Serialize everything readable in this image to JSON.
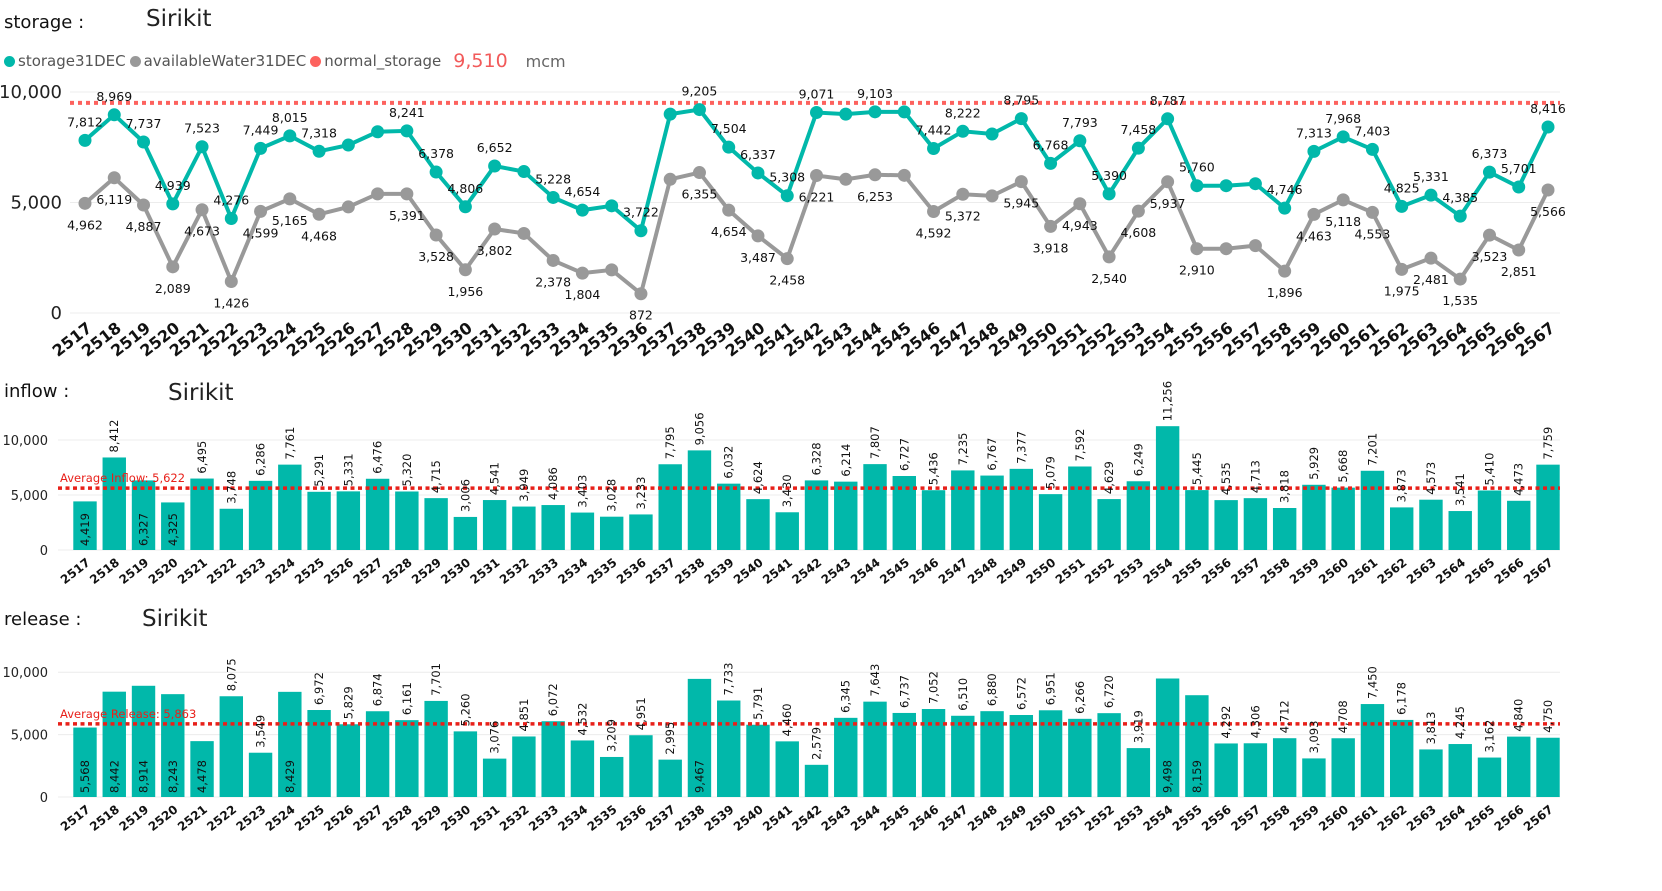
{
  "colors": {
    "teal": "#01b8aa",
    "gray": "#999999",
    "red": "#fd625e",
    "avgline": "#e8201a"
  },
  "storage": {
    "section_label": "storage :",
    "title": "Sirikit",
    "legend": [
      {
        "name": "storage31DEC",
        "color": "#01b8aa"
      },
      {
        "name": "availableWater31DEC",
        "color": "#999999"
      },
      {
        "name": "normal_storage",
        "color": "#fd625e"
      }
    ],
    "normal_storage_value": "9,510",
    "unit": "mcm"
  },
  "inflow": {
    "section_label": "inflow :",
    "title": "Sirikit"
  },
  "release": {
    "section_label": "release :",
    "title": "Sirikit"
  },
  "chart_data": [
    {
      "type": "line",
      "title": "Sirikit",
      "x": [
        "2517",
        "2518",
        "2519",
        "2520",
        "2521",
        "2522",
        "2523",
        "2524",
        "2525",
        "2526",
        "2527",
        "2528",
        "2529",
        "2530",
        "2531",
        "2532",
        "2533",
        "2534",
        "2535",
        "2536",
        "2537",
        "2538",
        "2539",
        "2540",
        "2541",
        "2542",
        "2543",
        "2544",
        "2545",
        "2546",
        "2547",
        "2548",
        "2549",
        "2550",
        "2551",
        "2552",
        "2553",
        "2554",
        "2555",
        "2556",
        "2557",
        "2558",
        "2559",
        "2560",
        "2561",
        "2562",
        "2563",
        "2564",
        "2565",
        "2566",
        "2567"
      ],
      "ylim": [
        0,
        10000
      ],
      "yticks": [
        0,
        5000,
        10000
      ],
      "ytick_labels": [
        "0",
        "5,000",
        "10,000"
      ],
      "reference_line": {
        "name": "normal_storage",
        "value": 9510
      },
      "series": [
        {
          "name": "storage31DEC",
          "color": "#01b8aa",
          "values": [
            7812,
            8969,
            7737,
            4939,
            7523,
            4276,
            7449,
            8015,
            7318,
            7600,
            8200,
            8241,
            6378,
            4806,
            6652,
            6400,
            5228,
            4654,
            4850,
            3722,
            9000,
            9205,
            7504,
            6337,
            5308,
            9071,
            9000,
            9103,
            9100,
            7442,
            8222,
            8100,
            8795,
            6768,
            7793,
            5390,
            7458,
            8787,
            5760,
            5760,
            5850,
            4746,
            7313,
            7968,
            7403,
            4825,
            5331,
            4385,
            6373,
            5701,
            8416
          ],
          "labels": [
            "7,812",
            "8,969",
            "7,737",
            "4,939",
            "7,523",
            "4,276",
            "7,449",
            "8,015",
            "7,318",
            "",
            "",
            "8,241",
            "6,378",
            "4,806",
            "6,652",
            "",
            "5,228",
            "4,654",
            "",
            "3,722",
            "",
            "9,205",
            "7,504",
            "6,337",
            "5,308",
            "9,071",
            "",
            "9,103",
            "",
            "7,442",
            "8,222",
            "",
            "8,795",
            "6,768",
            "7,793",
            "5,390",
            "7,458",
            "8,787",
            "5,760",
            "",
            "",
            "4,746",
            "7,313",
            "7,968",
            "7,403",
            "4,825",
            "5,331",
            "4,385",
            "6,373",
            "5,701",
            "8,416"
          ]
        },
        {
          "name": "availableWater31DEC",
          "color": "#999999",
          "values": [
            4962,
            6119,
            4887,
            2089,
            4673,
            1426,
            4599,
            5165,
            4468,
            4800,
            5391,
            5391,
            3528,
            1956,
            3802,
            3600,
            2378,
            1804,
            1950,
            872,
            6050,
            6355,
            4654,
            3487,
            2458,
            6221,
            6050,
            6253,
            6230,
            4592,
            5372,
            5300,
            5945,
            3918,
            4943,
            2540,
            4608,
            5937,
            2910,
            2910,
            3050,
            1896,
            4463,
            5118,
            4553,
            1975,
            2481,
            1535,
            3523,
            2851,
            5566
          ],
          "labels": [
            "4,962",
            "6,119",
            "4,887",
            "2,089",
            "4,673",
            "1,426",
            "4,599",
            "5,165",
            "4,468",
            "",
            "",
            "5,391",
            "3,528",
            "1,956",
            "3,802",
            "",
            "2,378",
            "1,804",
            "",
            "872",
            "",
            "6,355",
            "4,654",
            "3,487",
            "2,458",
            "6,221",
            "",
            "6,253",
            "",
            "4,592",
            "5,372",
            "",
            "5,945",
            "3,918",
            "4,943",
            "2,540",
            "4,608",
            "5,937",
            "2,910",
            "",
            "",
            "1,896",
            "4,463",
            "5,118",
            "4,553",
            "1,975",
            "2,481",
            "1,535",
            "3,523",
            "2,851",
            "5,566"
          ]
        }
      ]
    },
    {
      "type": "bar",
      "title": "Sirikit",
      "categories": [
        "2517",
        "2518",
        "2519",
        "2520",
        "2521",
        "2522",
        "2523",
        "2524",
        "2525",
        "2526",
        "2527",
        "2528",
        "2529",
        "2530",
        "2531",
        "2532",
        "2533",
        "2534",
        "2535",
        "2536",
        "2537",
        "2538",
        "2539",
        "2540",
        "2541",
        "2542",
        "2543",
        "2544",
        "2545",
        "2546",
        "2547",
        "2548",
        "2549",
        "2550",
        "2551",
        "2552",
        "2553",
        "2554",
        "2555",
        "2556",
        "2557",
        "2558",
        "2559",
        "2560",
        "2561",
        "2562",
        "2563",
        "2564",
        "2565",
        "2566",
        "2567"
      ],
      "values": [
        4419,
        8412,
        6327,
        4325,
        6495,
        3748,
        6286,
        7761,
        5291,
        5331,
        6476,
        5320,
        4715,
        3006,
        4541,
        3949,
        4086,
        3403,
        3028,
        3233,
        7795,
        9056,
        6032,
        4624,
        3430,
        6328,
        6214,
        7807,
        6727,
        5436,
        7235,
        6767,
        7377,
        5079,
        7592,
        4629,
        6249,
        11256,
        5445,
        4535,
        4713,
        3818,
        5929,
        5668,
        7201,
        3873,
        4573,
        3541,
        5410,
        4473,
        7759
      ],
      "labels": [
        "4,419",
        "8,412",
        "6,327",
        "4,325",
        "6,495",
        "3,748",
        "6,286",
        "7,761",
        "5,291",
        "5,331",
        "6,476",
        "5,320",
        "4,715",
        "3,006",
        "4,541",
        "3,949",
        "4,086",
        "3,403",
        "3,028",
        "3,233",
        "7,795",
        "9,056",
        "6,032",
        "4,624",
        "3,430",
        "6,328",
        "6,214",
        "7,807",
        "6,727",
        "5,436",
        "7,235",
        "6,767",
        "7,377",
        "5,079",
        "7,592",
        "4,629",
        "6,249",
        "11,256",
        "5,445",
        "4,535",
        "4,713",
        "3,818",
        "5,929",
        "5,668",
        "7,201",
        "3,873",
        "4,573",
        "3,541",
        "5,410",
        "4,473",
        "7,759"
      ],
      "ylim": [
        0,
        12000
      ],
      "yticks": [
        0,
        5000,
        10000
      ],
      "ytick_labels": [
        "0",
        "5,000",
        "10,000"
      ],
      "average": {
        "label": "Average Inflow: 5,622",
        "value": 5622
      }
    },
    {
      "type": "bar",
      "title": "Sirikit",
      "categories": [
        "2517",
        "2518",
        "2519",
        "2520",
        "2521",
        "2522",
        "2523",
        "2524",
        "2525",
        "2526",
        "2527",
        "2528",
        "2529",
        "2530",
        "2531",
        "2532",
        "2533",
        "2534",
        "2535",
        "2536",
        "2537",
        "2538",
        "2539",
        "2540",
        "2541",
        "2542",
        "2543",
        "2544",
        "2545",
        "2546",
        "2547",
        "2548",
        "2549",
        "2550",
        "2551",
        "2552",
        "2553",
        "2554",
        "2555",
        "2556",
        "2557",
        "2558",
        "2559",
        "2560",
        "2561",
        "2562",
        "2563",
        "2564",
        "2565",
        "2566",
        "2567"
      ],
      "values": [
        5568,
        8442,
        8914,
        8243,
        4478,
        8075,
        3549,
        8429,
        6972,
        5829,
        6874,
        6161,
        7701,
        5260,
        3076,
        4851,
        6072,
        4532,
        3209,
        4951,
        2995,
        9467,
        7733,
        5791,
        4460,
        2579,
        6345,
        7643,
        6737,
        7052,
        6510,
        6880,
        6572,
        6951,
        6266,
        6720,
        3919,
        9498,
        8159,
        4292,
        4306,
        4712,
        3093,
        4708,
        7450,
        6178,
        3813,
        4245,
        3162,
        4840,
        4750
      ],
      "labels": [
        "5,568",
        "8,442",
        "8,914",
        "8,243",
        "4,478",
        "8,075",
        "3,549",
        "8,429",
        "6,972",
        "5,829",
        "6,874",
        "6,161",
        "7,701",
        "5,260",
        "3,076",
        "4,851",
        "6,072",
        "4,532",
        "3,209",
        "4,951",
        "2,995",
        "9,467",
        "7,733",
        "5,791",
        "4,460",
        "2,579",
        "6,345",
        "7,643",
        "6,737",
        "7,052",
        "6,510",
        "6,880",
        "6,572",
        "6,951",
        "6,266",
        "6,720",
        "3,919",
        "9,498",
        "8,159",
        "4,292",
        "4,306",
        "4,712",
        "3,093",
        "4,708",
        "7,450",
        "6,178",
        "3,813",
        "4,245",
        "3,162",
        "4,840",
        "4,750"
      ],
      "ylim": [
        0,
        10500
      ],
      "yticks": [
        0,
        5000,
        10000
      ],
      "ytick_labels": [
        "0",
        "5,000",
        "10,000"
      ],
      "average": {
        "label": "Average Release: 5,863",
        "value": 5863
      }
    }
  ]
}
